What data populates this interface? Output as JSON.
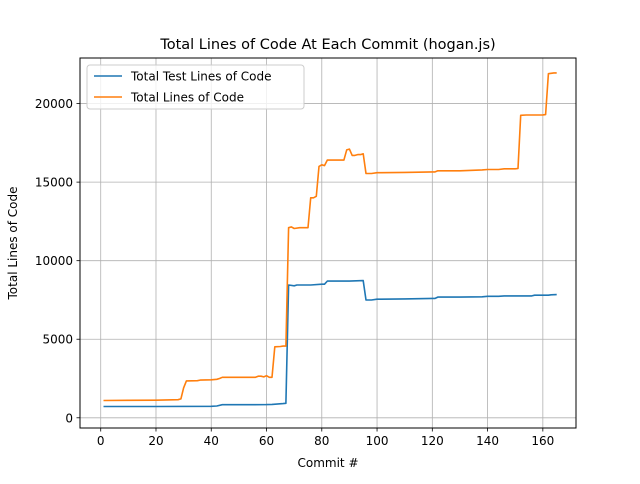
{
  "chart_data": {
    "type": "line",
    "title": "Total Lines of Code At Each Commit (hogan.js)",
    "xlabel": "Commit #",
    "ylabel": "Total Lines of Code",
    "xlim": [
      -7.5,
      172
    ],
    "ylim": [
      -650,
      22900
    ],
    "xticks": [
      0,
      20,
      40,
      60,
      80,
      100,
      120,
      140,
      160
    ],
    "yticks": [
      0,
      5000,
      10000,
      15000,
      20000
    ],
    "grid": true,
    "legend_position": "top-left",
    "series": [
      {
        "name": "Total Test Lines of Code",
        "color": "#1f77b4",
        "points": [
          [
            1,
            720
          ],
          [
            20,
            720
          ],
          [
            40,
            730
          ],
          [
            42,
            750
          ],
          [
            44,
            830
          ],
          [
            50,
            830
          ],
          [
            60,
            840
          ],
          [
            62,
            850
          ],
          [
            66,
            900
          ],
          [
            67,
            920
          ],
          [
            68,
            8450
          ],
          [
            70,
            8400
          ],
          [
            71,
            8450
          ],
          [
            76,
            8450
          ],
          [
            80,
            8500
          ],
          [
            81,
            8500
          ],
          [
            82,
            8700
          ],
          [
            90,
            8700
          ],
          [
            95,
            8730
          ],
          [
            96,
            7500
          ],
          [
            98,
            7500
          ],
          [
            100,
            7550
          ],
          [
            110,
            7570
          ],
          [
            120,
            7600
          ],
          [
            121,
            7600
          ],
          [
            122,
            7680
          ],
          [
            130,
            7680
          ],
          [
            138,
            7700
          ],
          [
            140,
            7730
          ],
          [
            144,
            7730
          ],
          [
            146,
            7760
          ],
          [
            156,
            7760
          ],
          [
            157,
            7800
          ],
          [
            162,
            7800
          ],
          [
            163,
            7830
          ],
          [
            165,
            7840
          ]
        ]
      },
      {
        "name": "Total Lines of Code",
        "color": "#ff7f0e",
        "points": [
          [
            1,
            1100
          ],
          [
            10,
            1110
          ],
          [
            20,
            1120
          ],
          [
            28,
            1150
          ],
          [
            29,
            1200
          ],
          [
            30,
            1900
          ],
          [
            31,
            2350
          ],
          [
            35,
            2360
          ],
          [
            36,
            2400
          ],
          [
            40,
            2420
          ],
          [
            42,
            2450
          ],
          [
            43,
            2500
          ],
          [
            44,
            2580
          ],
          [
            56,
            2580
          ],
          [
            57,
            2650
          ],
          [
            58,
            2650
          ],
          [
            59,
            2600
          ],
          [
            60,
            2680
          ],
          [
            61,
            2580
          ],
          [
            62,
            2580
          ],
          [
            63,
            4520
          ],
          [
            65,
            4540
          ],
          [
            66,
            4560
          ],
          [
            67,
            4560
          ],
          [
            68,
            12100
          ],
          [
            69,
            12150
          ],
          [
            70,
            12050
          ],
          [
            72,
            12100
          ],
          [
            75,
            12100
          ],
          [
            76,
            14000
          ],
          [
            77,
            14000
          ],
          [
            78,
            14100
          ],
          [
            79,
            16000
          ],
          [
            80,
            16100
          ],
          [
            81,
            16050
          ],
          [
            82,
            16400
          ],
          [
            84,
            16400
          ],
          [
            88,
            16400
          ],
          [
            89,
            17050
          ],
          [
            90,
            17100
          ],
          [
            91,
            16700
          ],
          [
            92,
            16700
          ],
          [
            93,
            16750
          ],
          [
            94,
            16750
          ],
          [
            95,
            16800
          ],
          [
            96,
            15550
          ],
          [
            98,
            15550
          ],
          [
            100,
            15600
          ],
          [
            110,
            15620
          ],
          [
            120,
            15650
          ],
          [
            121,
            15650
          ],
          [
            122,
            15720
          ],
          [
            130,
            15720
          ],
          [
            138,
            15780
          ],
          [
            140,
            15800
          ],
          [
            144,
            15800
          ],
          [
            146,
            15850
          ],
          [
            150,
            15850
          ],
          [
            151,
            15870
          ],
          [
            152,
            19250
          ],
          [
            154,
            19270
          ],
          [
            160,
            19280
          ],
          [
            161,
            19300
          ],
          [
            162,
            21900
          ],
          [
            164,
            21950
          ],
          [
            165,
            21950
          ]
        ]
      }
    ]
  }
}
